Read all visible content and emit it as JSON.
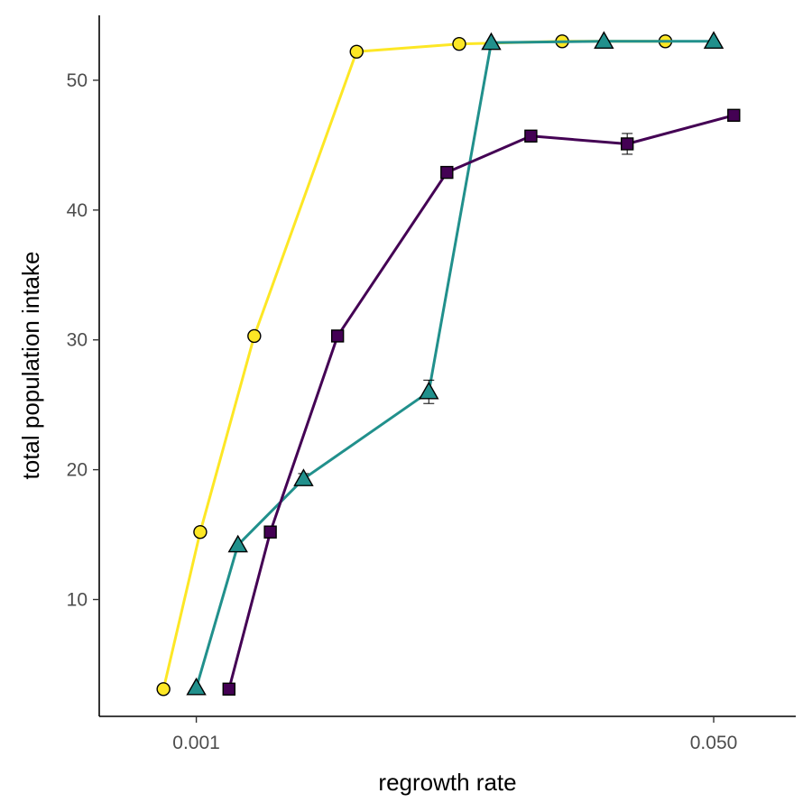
{
  "chart_data": {
    "type": "line",
    "title": "",
    "xlabel": "regrowth rate",
    "ylabel": "total population intake",
    "x_scale": "log",
    "xlim": [
      0.00048,
      0.093
    ],
    "ylim": [
      1,
      55
    ],
    "x_ticks": [
      {
        "value": 0.001,
        "label": "0.001"
      },
      {
        "value": 0.05,
        "label": "0.050"
      }
    ],
    "y_ticks": [
      {
        "value": 10,
        "label": "10"
      },
      {
        "value": 20,
        "label": "20"
      },
      {
        "value": 30,
        "label": "30"
      },
      {
        "value": 40,
        "label": "40"
      },
      {
        "value": 50,
        "label": "50"
      }
    ],
    "grid": false,
    "legend": "none",
    "series": [
      {
        "marker": "circle",
        "color": "#FDE725",
        "points": [
          {
            "x": 0.00078,
            "y": 3.1
          },
          {
            "x": 0.00103,
            "y": 15.2
          },
          {
            "x": 0.00155,
            "y": 30.3
          },
          {
            "x": 0.00336,
            "y": 52.2
          },
          {
            "x": 0.0073,
            "y": 52.8
          },
          {
            "x": 0.0159,
            "y": 53.0
          },
          {
            "x": 0.0347,
            "y": 53.0
          }
        ]
      },
      {
        "marker": "triangle",
        "color": "#21908C",
        "points": [
          {
            "x": 0.001,
            "y": 3.2
          },
          {
            "x": 0.00137,
            "y": 14.2
          },
          {
            "x": 0.00225,
            "y": 19.3,
            "err": 0.4
          },
          {
            "x": 0.0058,
            "y": 26.0,
            "err": 0.9
          },
          {
            "x": 0.0093,
            "y": 52.9
          },
          {
            "x": 0.0218,
            "y": 53.0
          },
          {
            "x": 0.05,
            "y": 53.0
          }
        ]
      },
      {
        "marker": "square",
        "color": "#440154",
        "points": [
          {
            "x": 0.00128,
            "y": 3.1
          },
          {
            "x": 0.00175,
            "y": 15.2
          },
          {
            "x": 0.00291,
            "y": 30.3
          },
          {
            "x": 0.00665,
            "y": 42.9
          },
          {
            "x": 0.01255,
            "y": 45.7
          },
          {
            "x": 0.026,
            "y": 45.1,
            "err": 0.8
          },
          {
            "x": 0.0582,
            "y": 47.3
          }
        ]
      }
    ]
  }
}
